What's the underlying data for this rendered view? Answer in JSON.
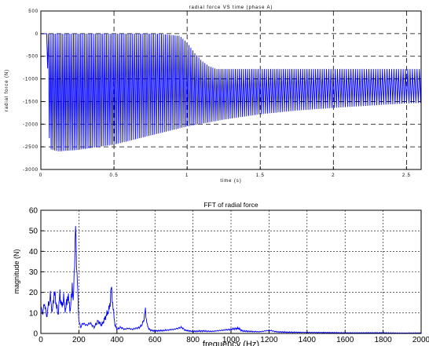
{
  "chart_data": [
    {
      "type": "line",
      "title": "radial force VS time (phase A)",
      "xlabel": "time (s)",
      "ylabel": "radial force (N)",
      "xlim": [
        0,
        2.6
      ],
      "ylim": [
        -3000,
        500
      ],
      "xticks": [
        0,
        0.5,
        1,
        1.5,
        2,
        2.5
      ],
      "xtick_labels": [
        "0",
        "0.5",
        "1",
        "1.5",
        "2",
        "2.5"
      ],
      "yticks": [
        500,
        0,
        -500,
        -1000,
        -1500,
        -2000,
        -2500,
        -3000
      ],
      "ytick_labels": [
        "500",
        "0",
        "-500",
        "-1000",
        "-1500",
        "-2000",
        "-2500",
        "-3000"
      ],
      "grid": "dashed",
      "legend": "none",
      "series": [
        {
          "color": "#0000ff",
          "upper_envelope": {
            "x": [
              0,
              0.04,
              0.2,
              0.5,
              0.8,
              0.95,
              1.0,
              1.05,
              1.1,
              1.15,
              1.2,
              1.3,
              2.6
            ],
            "y": [
              0,
              0,
              0,
              0,
              0,
              -50,
              -200,
              -420,
              -600,
              -720,
              -780,
              -780,
              -780
            ]
          },
          "lower_envelope": {
            "x": [
              0,
              0.04,
              0.06,
              0.12,
              0.25,
              0.5,
              0.75,
              1.0,
              1.25,
              1.5,
              1.75,
              2.0,
              2.25,
              2.5,
              2.6
            ],
            "y": [
              0,
              0,
              -2550,
              -2600,
              -2570,
              -2450,
              -2250,
              -2050,
              -1900,
              -1780,
              -1700,
              -1640,
              -1590,
              -1540,
              -1530
            ]
          }
        }
      ]
    },
    {
      "type": "line",
      "title": "FFT of radial force",
      "xlabel": "frequency (Hz)",
      "ylabel": "magnitude (N)",
      "xlim": [
        0,
        2000
      ],
      "ylim": [
        0,
        60
      ],
      "xticks": [
        0,
        200,
        400,
        600,
        800,
        1000,
        1200,
        1400,
        1600,
        1800,
        2000
      ],
      "xtick_labels": [
        "0",
        "200",
        "400",
        "600",
        "800",
        "1000",
        "1200",
        "1400",
        "1600",
        "1800",
        "2000"
      ],
      "yticks": [
        0,
        10,
        20,
        30,
        40,
        50,
        60
      ],
      "ytick_labels": [
        "0",
        "10",
        "20",
        "30",
        "40",
        "50",
        "60"
      ],
      "grid": "dashed",
      "legend": "none",
      "series": [
        {
          "color": "#0000ff",
          "x": [
            0,
            10,
            20,
            30,
            40,
            50,
            60,
            70,
            80,
            90,
            100,
            110,
            120,
            130,
            140,
            150,
            155,
            160,
            165,
            170,
            175,
            180,
            183,
            186,
            190,
            195,
            200,
            210,
            220,
            240,
            260,
            280,
            300,
            320,
            340,
            350,
            360,
            365,
            370,
            375,
            380,
            390,
            400,
            420,
            440,
            460,
            480,
            500,
            520,
            530,
            540,
            545,
            550,
            555,
            560,
            570,
            580,
            600,
            650,
            700,
            720,
            740,
            760,
            800,
            850,
            900,
            950,
            1000,
            1020,
            1040,
            1060,
            1100,
            1150,
            1200,
            1220,
            1240,
            1300,
            1400,
            1500,
            1600,
            1700,
            1800,
            1900,
            2000
          ],
          "y": [
            12,
            10,
            15,
            8,
            14,
            18,
            10,
            20,
            15,
            9,
            19,
            13,
            17,
            11,
            18,
            15,
            10,
            18,
            24,
            14,
            30,
            40,
            55,
            42,
            28,
            18,
            6,
            3,
            5,
            4,
            5,
            3,
            6,
            4,
            8,
            10,
            12,
            16,
            22,
            18,
            12,
            4,
            2,
            3,
            2,
            2.5,
            2,
            2.5,
            3,
            4,
            6,
            9,
            11,
            7,
            4,
            2,
            1.5,
            1.2,
            1.5,
            2,
            2.5,
            3,
            1.5,
            1,
            1.2,
            1,
            1.5,
            2,
            2.3,
            2.5,
            1.2,
            1,
            0.8,
            1.5,
            1.2,
            0.8,
            0.6,
            0.5,
            0.4,
            0.3,
            0.3,
            0.3,
            0.2,
            0.2
          ]
        }
      ]
    }
  ]
}
